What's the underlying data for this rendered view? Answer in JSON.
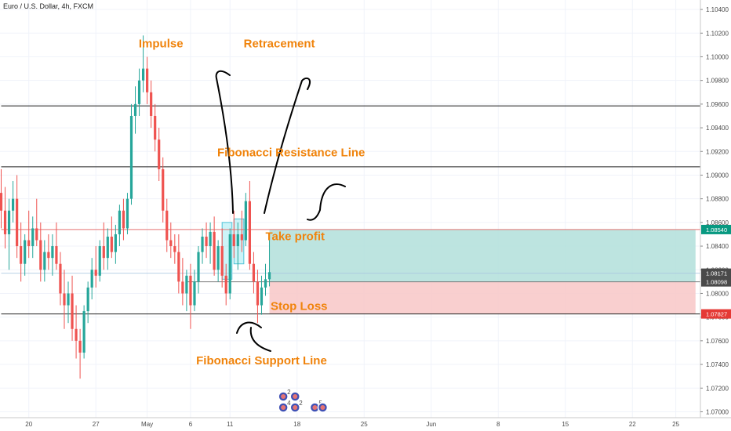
{
  "chart_data": {
    "type": "candlestick",
    "title": "Euro / U.S. Dollar, 4h, FXCM",
    "colors": {
      "up": "#26a69a",
      "down": "#ef5350",
      "grid": "#f0f3fa",
      "hline": "#222222",
      "take_profit_fill": "#b2dfdb",
      "stop_loss_fill": "#f8c7c7",
      "annotation": "#f0830b",
      "tag_tp": "#089981",
      "tag_sl": "#e53935",
      "tag_mid": "#4a4a4a"
    },
    "y_axis": {
      "range": [
        1.0695,
        1.1048
      ],
      "ticks": [
        "1.10400",
        "1.10200",
        "1.10000",
        "1.09800",
        "1.09600",
        "1.09400",
        "1.09200",
        "1.09000",
        "1.08800",
        "1.08600",
        "1.08400",
        "1.08200",
        "1.08000",
        "1.07800",
        "1.07600",
        "1.07400",
        "1.07200",
        "1.07000"
      ]
    },
    "x_axis": {
      "ticks": [
        {
          "label": "20",
          "bar": 7
        },
        {
          "label": "27",
          "bar": 24
        },
        {
          "label": "May",
          "bar": 37
        },
        {
          "label": "6",
          "bar": 48
        },
        {
          "label": "11",
          "bar": 58
        },
        {
          "label": "18",
          "bar": 75
        },
        {
          "label": "25",
          "bar": 92
        },
        {
          "label": "Jun",
          "bar": 109
        },
        {
          "label": "8",
          "bar": 126
        },
        {
          "label": "15",
          "bar": 143
        },
        {
          "label": "22",
          "bar": 160
        },
        {
          "label": "25",
          "bar": 171
        }
      ]
    },
    "candles": [
      [
        1.0885,
        1.0905,
        1.0855,
        1.087
      ],
      [
        1.087,
        1.089,
        1.0838,
        1.085
      ],
      [
        1.085,
        1.088,
        1.082,
        1.087
      ],
      [
        1.087,
        1.0895,
        1.086,
        1.088
      ],
      [
        1.088,
        1.09,
        1.083,
        1.084
      ],
      [
        1.084,
        1.086,
        1.081,
        1.0825
      ],
      [
        1.0825,
        1.085,
        1.0815,
        1.0845
      ],
      [
        1.0845,
        1.087,
        1.083,
        1.084
      ],
      [
        1.084,
        1.0865,
        1.083,
        1.0855
      ],
      [
        1.0855,
        1.088,
        1.084,
        1.0845
      ],
      [
        1.0845,
        1.086,
        1.081,
        1.082
      ],
      [
        1.082,
        1.0845,
        1.081,
        1.0835
      ],
      [
        1.0835,
        1.085,
        1.082,
        1.083
      ],
      [
        1.083,
        1.085,
        1.0815,
        1.084
      ],
      [
        1.084,
        1.086,
        1.082,
        1.0825
      ],
      [
        1.0825,
        1.0835,
        1.079,
        1.08
      ],
      [
        1.08,
        1.082,
        1.077,
        1.079
      ],
      [
        1.079,
        1.081,
        1.0775,
        1.08
      ],
      [
        1.08,
        1.0815,
        1.076,
        1.077
      ],
      [
        1.077,
        1.079,
        1.0745,
        1.076
      ],
      [
        1.076,
        1.077,
        1.0728,
        1.075
      ],
      [
        1.075,
        1.079,
        1.0745,
        1.0785
      ],
      [
        1.0785,
        1.081,
        1.0775,
        1.0805
      ],
      [
        1.0805,
        1.083,
        1.0795,
        1.082
      ],
      [
        1.082,
        1.084,
        1.0805,
        1.0815
      ],
      [
        1.0815,
        1.0845,
        1.081,
        1.084
      ],
      [
        1.084,
        1.086,
        1.082,
        1.083
      ],
      [
        1.083,
        1.0855,
        1.082,
        1.0848
      ],
      [
        1.0848,
        1.0865,
        1.083,
        1.0835
      ],
      [
        1.0835,
        1.0858,
        1.0825,
        1.085
      ],
      [
        1.085,
        1.0875,
        1.084,
        1.087
      ],
      [
        1.087,
        1.088,
        1.0845,
        1.0855
      ],
      [
        1.0855,
        1.0885,
        1.085,
        1.088
      ],
      [
        1.088,
        1.096,
        1.0875,
        1.095
      ],
      [
        1.095,
        1.0975,
        1.0935,
        1.096
      ],
      [
        1.096,
        1.099,
        1.095,
        1.098
      ],
      [
        1.098,
        1.1018,
        1.097,
        1.099
      ],
      [
        1.099,
        1.1,
        1.096,
        1.097
      ],
      [
        1.097,
        1.098,
        1.094,
        1.095
      ],
      [
        1.095,
        1.096,
        1.092,
        1.093
      ],
      [
        1.093,
        1.094,
        1.0895,
        1.0905
      ],
      [
        1.0905,
        1.0915,
        1.086,
        1.087
      ],
      [
        1.087,
        1.088,
        1.0835,
        1.0845
      ],
      [
        1.0845,
        1.086,
        1.083,
        1.084
      ],
      [
        1.084,
        1.085,
        1.0825,
        1.0835
      ],
      [
        1.0835,
        1.085,
        1.08,
        1.081
      ],
      [
        1.081,
        1.083,
        1.079,
        1.08
      ],
      [
        1.08,
        1.082,
        1.0785,
        1.0815
      ],
      [
        1.0815,
        1.0825,
        1.077,
        1.079
      ],
      [
        1.079,
        1.082,
        1.0785,
        1.081
      ],
      [
        1.081,
        1.084,
        1.08,
        1.0835
      ],
      [
        1.0835,
        1.0855,
        1.0825,
        1.0848
      ],
      [
        1.0848,
        1.086,
        1.083,
        1.084
      ],
      [
        1.084,
        1.086,
        1.0825,
        1.0852
      ],
      [
        1.0852,
        1.0865,
        1.0815,
        1.082
      ],
      [
        1.082,
        1.0845,
        1.081,
        1.084
      ],
      [
        1.084,
        1.0855,
        1.0805,
        1.0815
      ],
      [
        1.0815,
        1.0825,
        1.079,
        1.08
      ],
      [
        1.08,
        1.0855,
        1.0795,
        1.085
      ],
      [
        1.085,
        1.087,
        1.083,
        1.084
      ],
      [
        1.084,
        1.086,
        1.082,
        1.085
      ],
      [
        1.085,
        1.087,
        1.0835,
        1.0845
      ],
      [
        1.0845,
        1.0885,
        1.084,
        1.0878
      ],
      [
        1.0878,
        1.0895,
        1.082,
        1.0825
      ],
      [
        1.0825,
        1.0835,
        1.08,
        1.081
      ],
      [
        1.081,
        1.082,
        1.0775,
        1.079
      ],
      [
        1.079,
        1.0815,
        1.0782,
        1.0805
      ],
      [
        1.0805,
        1.0825,
        1.0798,
        1.0812
      ],
      [
        1.0812,
        1.085,
        1.0806,
        1.0818
      ]
    ],
    "horizontal_lines": [
      {
        "price": 1.09585,
        "x_from": 0,
        "style": "black"
      },
      {
        "price": 1.0907,
        "x_from": 0,
        "style": "black"
      },
      {
        "price": 1.0854,
        "x_from": 0,
        "style": "red"
      },
      {
        "price": 1.08171,
        "x_from": 0,
        "style": "blue-faint"
      },
      {
        "price": 1.08098,
        "x_from": 47,
        "style": "gray"
      },
      {
        "price": 1.07827,
        "x_from": 0,
        "style": "black"
      }
    ],
    "zones": [
      {
        "name": "take-profit",
        "bar_from": 68,
        "bar_to": 176,
        "top": 1.0854,
        "bottom": 1.08098
      },
      {
        "name": "stop-loss",
        "bar_from": 68,
        "bar_to": 176,
        "top": 1.08098,
        "bottom": 1.07827
      },
      {
        "name": "impulse-box-1",
        "bar_from": 56,
        "bar_to": 58.5,
        "top": 1.086,
        "bottom": 1.0812
      },
      {
        "name": "impulse-box-2",
        "bar_from": 59,
        "bar_to": 61.5,
        "top": 1.0863,
        "bottom": 1.0825
      }
    ],
    "price_tags": [
      {
        "value": "1.08540",
        "price": 1.0854,
        "style": "tp"
      },
      {
        "value": "1.08171",
        "price": 1.08171,
        "style": "mid"
      },
      {
        "value": "1.08098",
        "price": 1.08098,
        "style": "mid"
      },
      {
        "value": "1.07827",
        "price": 1.07827,
        "style": "sl"
      }
    ],
    "annotations": [
      {
        "text": "Impulse",
        "bar": 40.5,
        "price": 1.1008
      },
      {
        "text": "Retracement",
        "bar": 70.5,
        "price": 1.1008
      },
      {
        "text": "Fibonacci Resistance Line",
        "bar": 73.5,
        "price": 1.0916
      },
      {
        "text": "Take profit",
        "bar": 74.5,
        "price": 1.0845
      },
      {
        "text": "Stop Loss",
        "bar": 75.5,
        "price": 1.0786
      },
      {
        "text": "Fibonacci Support Line",
        "bar": 66,
        "price": 1.074
      }
    ],
    "event_badges": [
      {
        "label": "2",
        "bar": 71.5,
        "row": 0
      },
      {
        "label": "",
        "bar": 74.5,
        "row": 0
      },
      {
        "label": "4",
        "bar": 71.5,
        "row": 1
      },
      {
        "label": "2",
        "bar": 74.5,
        "row": 1
      },
      {
        "label": "5",
        "bar": 79.5,
        "row": 1
      },
      {
        "label": "",
        "bar": 81.5,
        "row": 1
      }
    ]
  }
}
